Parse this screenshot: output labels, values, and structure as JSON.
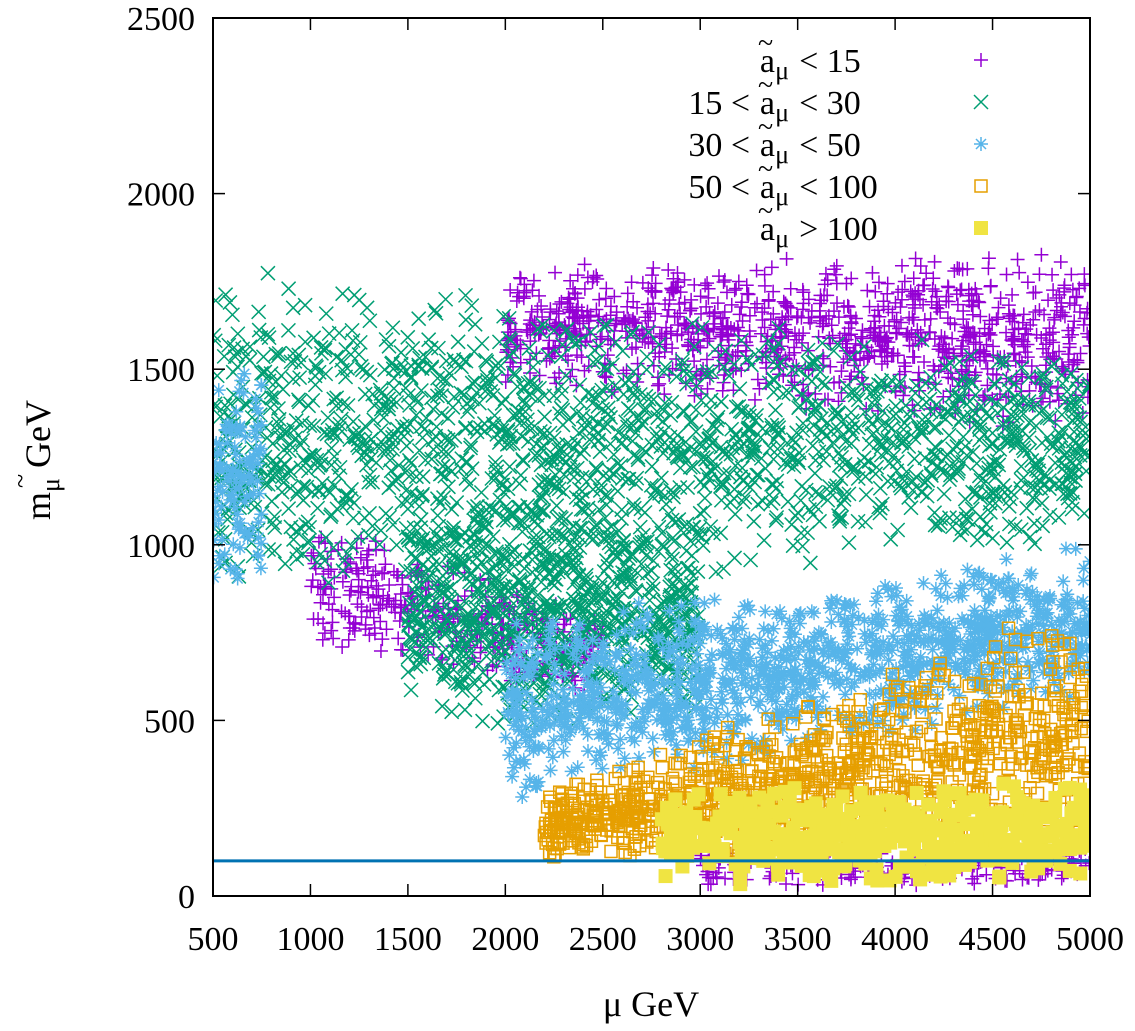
{
  "chart_data": {
    "type": "scatter",
    "xlabel": "μ GeV",
    "ylabel": "m̃μ GeV",
    "ylabel_main": "m",
    "ylabel_sub": "μ",
    "ylabel_tilde": "~",
    "ylabel_unit": "GeV",
    "xlim": [
      500,
      5000
    ],
    "ylim": [
      0,
      2500
    ],
    "x_ticks": [
      500,
      1000,
      1500,
      2000,
      2500,
      3000,
      3500,
      4000,
      4500,
      5000
    ],
    "y_ticks": [
      0,
      500,
      1000,
      1500,
      2000,
      2500
    ],
    "x_tick_labels": [
      "500",
      "1000",
      "1500",
      "2000",
      "2500",
      "3000",
      "3500",
      "4000",
      "4500",
      "5000"
    ],
    "y_tick_labels": [
      "0",
      "500",
      "1000",
      "1500",
      "2000",
      "2500"
    ],
    "grid": false,
    "legend_position": "top-right",
    "hline": {
      "y": 100,
      "color": "#0072b2"
    },
    "series": [
      {
        "name": "ã_μ < 15",
        "label": {
          "pre": "",
          "post": "< 15"
        },
        "marker": "plus",
        "color": "#9400d3",
        "regions": [
          {
            "x": [
              2000,
              5000
            ],
            "y_lo": [
              1450,
              1300
            ],
            "y_hi": [
              1800,
              1850
            ]
          },
          {
            "x": [
              1000,
              2500
            ],
            "y_lo": [
              700,
              550
            ],
            "y_hi": [
              1100,
              800
            ]
          },
          {
            "x": [
              3000,
              5000
            ],
            "y_lo": [
              20,
              20
            ],
            "y_hi": [
              150,
              150
            ]
          }
        ]
      },
      {
        "name": "15 < ã_μ < 30",
        "label": {
          "pre": "15 <",
          "post": "< 30"
        },
        "marker": "cross",
        "color": "#009e73",
        "regions": [
          {
            "x": [
              500,
              5000
            ],
            "y_lo": [
              800,
              1000
            ],
            "y_hi": [
              1800,
              1550
            ]
          },
          {
            "x": [
              1500,
              3000
            ],
            "y_lo": [
              450,
              500
            ],
            "y_hi": [
              1200,
              1100
            ]
          }
        ]
      },
      {
        "name": "30 < ã_μ < 50",
        "label": {
          "pre": "30 <",
          "post": "< 50"
        },
        "marker": "star",
        "color": "#56b4e9",
        "regions": [
          {
            "x": [
              500,
              750
            ],
            "y_lo": [
              850,
              900
            ],
            "y_hi": [
              1500,
              1500
            ]
          },
          {
            "x": [
              2000,
              5000
            ],
            "y_lo": [
              250,
              550
            ],
            "y_hi": [
              800,
              1000
            ]
          }
        ]
      },
      {
        "name": "50 < ã_μ < 100",
        "label": {
          "pre": "50 <",
          "post": "< 100"
        },
        "marker": "square-open",
        "color": "#e69f00",
        "regions": [
          {
            "x": [
              2200,
              5000
            ],
            "y_lo": [
              100,
              100
            ],
            "y_hi": [
              300,
              850
            ]
          }
        ]
      },
      {
        "name": "ã_μ > 100",
        "label": {
          "pre": "",
          "post": "> 100"
        },
        "marker": "square-filled",
        "color": "#f0e442",
        "regions": [
          {
            "x": [
              2800,
              5000
            ],
            "y_lo": [
              30,
              30
            ],
            "y_hi": [
              300,
              350
            ]
          }
        ]
      }
    ]
  }
}
